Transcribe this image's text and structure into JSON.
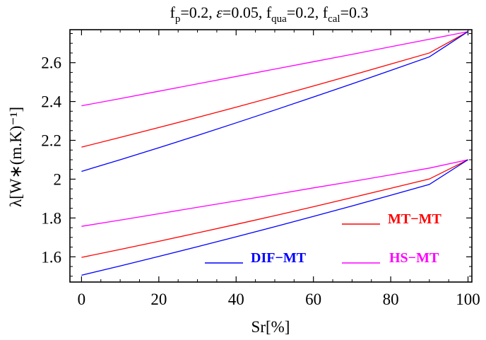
{
  "chart_data": {
    "type": "line",
    "title_parts": [
      {
        "t": "f",
        "sub": "p",
        "rest": "=0.2, "
      },
      {
        "t": "ε",
        "italic": true,
        "rest": "=0.05, "
      },
      {
        "t": "f",
        "sub": "qua",
        "rest": "=0.2, "
      },
      {
        "t": "f",
        "sub": "cal",
        "rest": "=0.3"
      }
    ],
    "xlabel": "Sr[%]",
    "ylabel": "λ[W∗(m.K)⁻¹]",
    "xlim": [
      -3,
      101
    ],
    "ylim": [
      1.47,
      2.77
    ],
    "xticks": [
      0,
      20,
      40,
      60,
      80,
      100
    ],
    "xtick_labels": [
      "0",
      "20",
      "40",
      "60",
      "80",
      "100"
    ],
    "yticks": [
      1.6,
      1.8,
      2.0,
      2.2,
      2.4,
      2.6
    ],
    "ytick_labels": [
      "1.6",
      "1.8",
      "2",
      "2.2",
      "2.4",
      "2.6"
    ],
    "x": [
      0,
      10,
      20,
      30,
      40,
      50,
      60,
      70,
      80,
      90,
      100
    ],
    "series": [
      {
        "name": "HS-MT",
        "color": "#ff00ff",
        "values": [
          2.378,
          2.415,
          2.453,
          2.491,
          2.529,
          2.567,
          2.605,
          2.643,
          2.682,
          2.721,
          2.76
        ]
      },
      {
        "name": "MT-MT",
        "color": "#ff0000",
        "values": [
          2.165,
          2.215,
          2.266,
          2.318,
          2.371,
          2.425,
          2.48,
          2.536,
          2.593,
          2.65,
          2.76
        ]
      },
      {
        "name": "DIF-MT",
        "color": "#0000ff",
        "values": [
          2.04,
          2.1,
          2.162,
          2.225,
          2.29,
          2.356,
          2.423,
          2.491,
          2.56,
          2.63,
          2.76
        ]
      },
      {
        "name": "HS-MT",
        "color": "#ff00ff",
        "values": [
          1.757,
          1.789,
          1.822,
          1.855,
          1.888,
          1.921,
          1.955,
          1.988,
          2.022,
          2.057,
          2.1
        ]
      },
      {
        "name": "MT-MT",
        "color": "#ff0000",
        "values": [
          1.597,
          1.638,
          1.68,
          1.723,
          1.767,
          1.812,
          1.858,
          1.905,
          1.953,
          2.001,
          2.1
        ]
      },
      {
        "name": "DIF-MT",
        "color": "#0000ff",
        "values": [
          1.505,
          1.553,
          1.602,
          1.652,
          1.703,
          1.755,
          1.808,
          1.862,
          1.917,
          1.973,
          2.1
        ]
      }
    ],
    "legend": [
      {
        "label": "MT−MT",
        "color": "#ff0000"
      },
      {
        "label": "DIF−MT",
        "color": "#0000ff"
      },
      {
        "label": "HS−MT",
        "color": "#ff00ff"
      }
    ],
    "grid": false
  }
}
